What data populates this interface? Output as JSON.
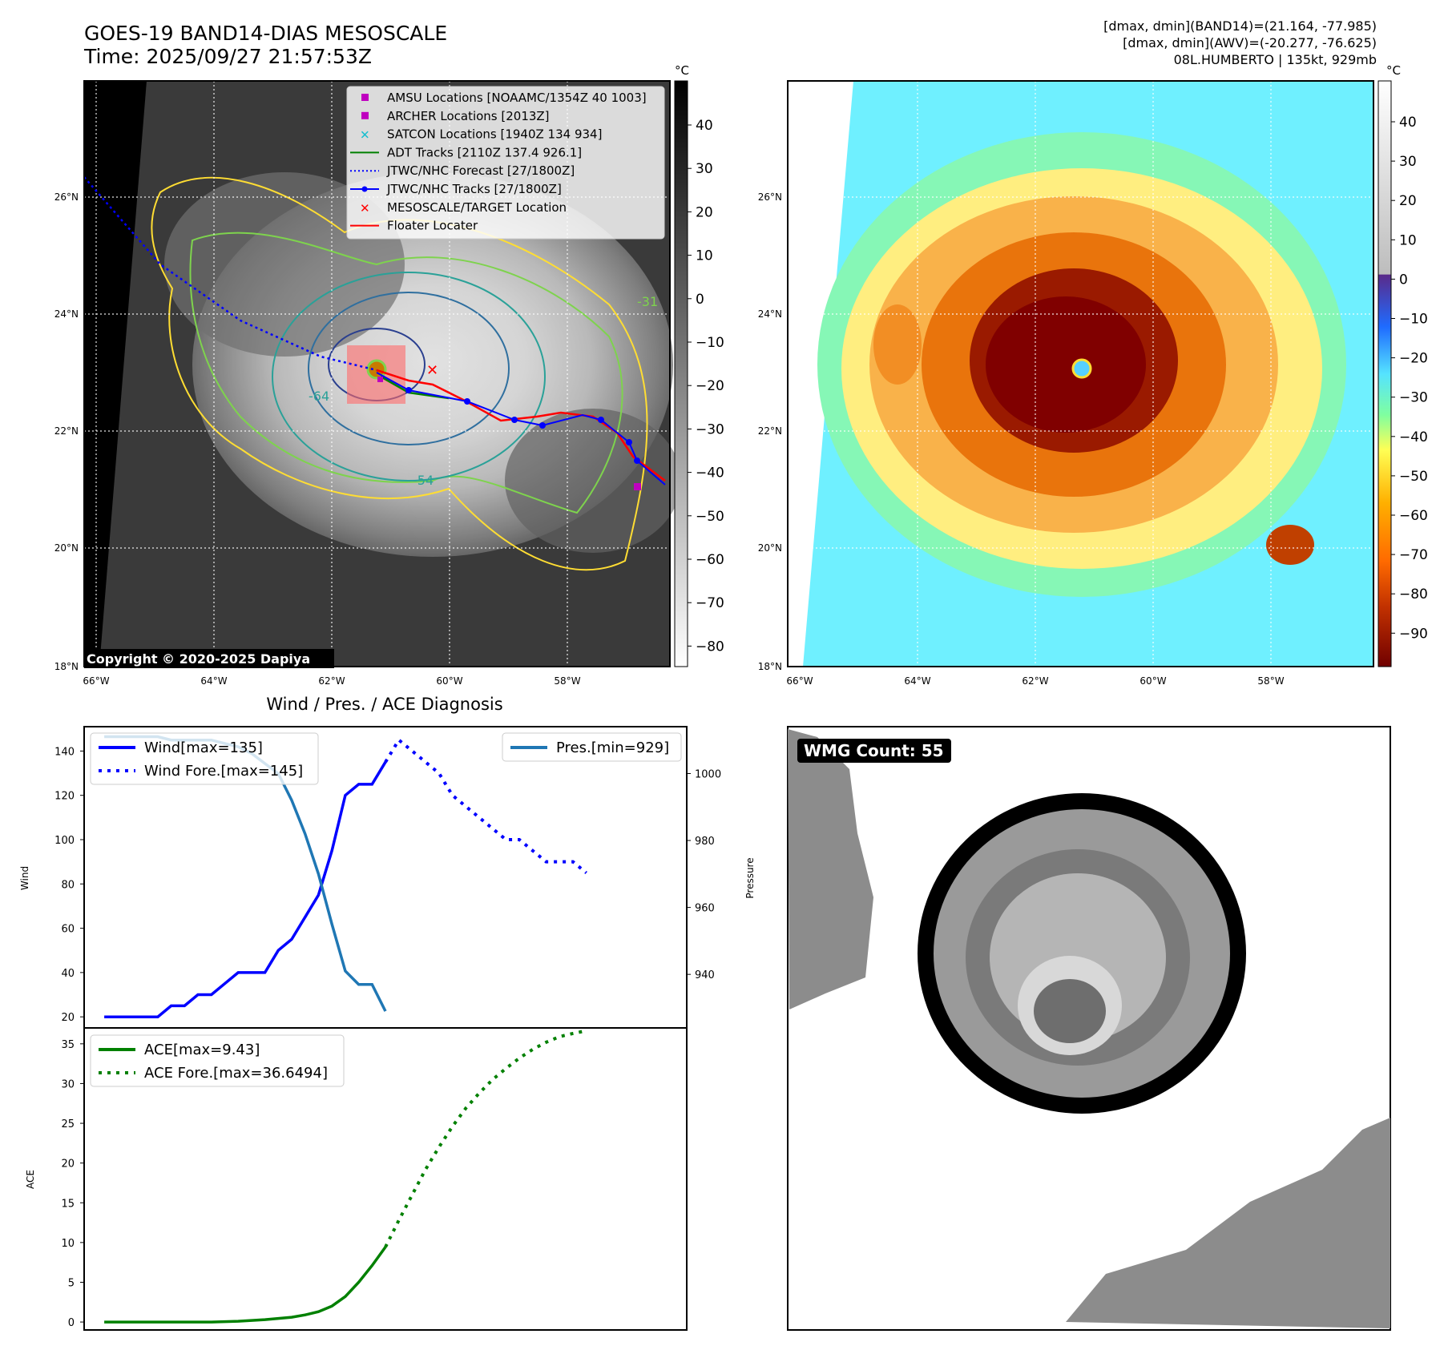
{
  "header": {
    "title": "GOES-19 BAND14-DIAS MESOSCALE",
    "time": "Time: 2025/09/27 21:57:53Z",
    "dmax_band14": "[dmax, dmin](BAND14)=(21.164, -77.985)",
    "dmax_awv": "[dmax, dmin](AWV)=(-20.277, -76.625)",
    "storm": "08L.HUMBERTO | 135kt, 929mb"
  },
  "copyright": "Copyright © 2020-2025 Dapiya",
  "units": "°C",
  "map": {
    "lat_labels": [
      "26°N",
      "24°N",
      "22°N",
      "20°N",
      "18°N"
    ],
    "lon_labels": [
      "66°W",
      "64°W",
      "62°W",
      "60°W",
      "58°W"
    ],
    "contour_labels": [
      "-31",
      "-64",
      "-54"
    ]
  },
  "colorbar_left": {
    "ticks": [
      "40",
      "30",
      "20",
      "10",
      "0",
      "−10",
      "−20",
      "−30",
      "−40",
      "−50",
      "−60",
      "−70",
      "−80"
    ]
  },
  "colorbar_right": {
    "ticks": [
      "40",
      "30",
      "20",
      "10",
      "0",
      "−10",
      "−20",
      "−30",
      "−40",
      "−50",
      "−60",
      "−70",
      "−80",
      "−90"
    ]
  },
  "legend": [
    {
      "label": "AMSU Locations [NOAAMC/1354Z 40 1003]",
      "color": "#bf00bf",
      "kind": "square"
    },
    {
      "label": "ARCHER Locations [2013Z]",
      "color": "#bf00bf",
      "kind": "square"
    },
    {
      "label": "SATCON Locations [1940Z 134 934]",
      "color": "#17becf",
      "kind": "x"
    },
    {
      "label": "ADT Tracks [2110Z 137.4 926.1]",
      "color": "#008000",
      "kind": "line"
    },
    {
      "label": "JTWC/NHC Forecast [27/1800Z]",
      "color": "#0000ff",
      "kind": "dotted"
    },
    {
      "label": "JTWC/NHC Tracks [27/1800Z]",
      "color": "#0000ff",
      "kind": "linedot"
    },
    {
      "label": "MESOSCALE/TARGET Location",
      "color": "#ff0000",
      "kind": "x"
    },
    {
      "label": "Floater Locater",
      "color": "#ff0000",
      "kind": "line"
    }
  ],
  "wmg_label": "WMG Count: 55",
  "chart_data": [
    {
      "type": "line",
      "title": "Wind / Pres. / ACE Diagnosis",
      "xlabel": "",
      "ylabel": "Wind",
      "y2label": "Pressure",
      "ylim": [
        15,
        151
      ],
      "y2lim": [
        924,
        1014
      ],
      "yticks": [
        20,
        40,
        60,
        80,
        100,
        120,
        140
      ],
      "y2ticks": [
        940,
        960,
        980,
        1000
      ],
      "legend_left": [
        "Wind[max=135]",
        "Wind Fore.[max=145]"
      ],
      "legend_right": [
        "Pres.[min=929]"
      ],
      "series": [
        {
          "name": "Wind[max=135]",
          "axis": "left",
          "color": "#0000ff",
          "style": "solid",
          "x": [
            0,
            1,
            2,
            3,
            4,
            5,
            6,
            7,
            8,
            9,
            10,
            11,
            12,
            13,
            14,
            15,
            16,
            17,
            18,
            19,
            20,
            21,
            22,
            23,
            24
          ],
          "values": [
            20,
            20,
            20,
            20,
            20,
            25,
            25,
            30,
            30,
            35,
            40,
            40,
            40,
            50,
            55,
            65,
            75,
            95,
            120,
            125,
            125,
            135,
            null,
            null,
            null
          ]
        },
        {
          "name": "Wind Fore.[max=145]",
          "axis": "left",
          "color": "#0000ff",
          "style": "dotted",
          "x": [
            21,
            22,
            23,
            24,
            25,
            26,
            27,
            28,
            29,
            30,
            31,
            32,
            33,
            34,
            35,
            36,
            37,
            38,
            39,
            40,
            41
          ],
          "values": [
            135,
            145,
            140,
            135,
            130,
            120,
            115,
            110,
            105,
            100,
            100,
            95,
            90,
            90,
            90,
            85,
            null,
            null,
            null,
            null,
            null
          ]
        },
        {
          "name": "Pres.[min=929]",
          "axis": "right",
          "color": "#1f77b4",
          "style": "solid",
          "x": [
            0,
            1,
            2,
            3,
            4,
            5,
            6,
            7,
            8,
            9,
            10,
            11,
            12,
            13,
            14,
            15,
            16,
            17,
            18,
            19,
            20,
            21
          ],
          "values": [
            1011,
            1011,
            1011,
            1011,
            1011,
            1010,
            1010,
            1010,
            1010,
            1009,
            1008,
            1006,
            1003,
            1000,
            992,
            982,
            970,
            955,
            941,
            937,
            937,
            929
          ]
        }
      ]
    },
    {
      "type": "line",
      "ylabel": "ACE",
      "ylim": [
        -1,
        37
      ],
      "yticks": [
        0,
        5,
        10,
        15,
        20,
        25,
        30,
        35
      ],
      "legend": [
        "ACE[max=9.43]",
        "ACE Fore.[max=36.6494]"
      ],
      "series": [
        {
          "name": "ACE[max=9.43]",
          "color": "#008000",
          "style": "solid",
          "x": [
            0,
            2,
            4,
            6,
            8,
            10,
            12,
            14,
            15,
            16,
            17,
            18,
            19,
            20,
            21
          ],
          "values": [
            0,
            0,
            0,
            0,
            0,
            0.1,
            0.3,
            0.6,
            0.9,
            1.3,
            2.0,
            3.2,
            5.0,
            7.1,
            9.43
          ]
        },
        {
          "name": "ACE Fore.[max=36.6494]",
          "color": "#008000",
          "style": "dotted",
          "x": [
            21,
            22,
            23,
            24,
            25,
            26,
            27,
            28,
            29,
            30,
            31,
            32,
            33,
            34,
            35,
            36
          ],
          "values": [
            9.43,
            12.8,
            16.0,
            19.2,
            22.0,
            24.6,
            26.9,
            28.8,
            30.5,
            31.9,
            33.2,
            34.3,
            35.2,
            35.9,
            36.3,
            36.6494
          ]
        }
      ]
    }
  ]
}
